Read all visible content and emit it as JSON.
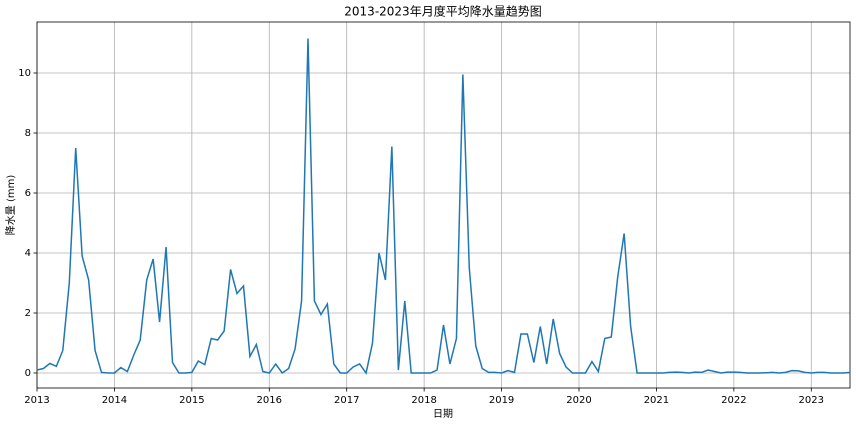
{
  "chart_data": {
    "type": "line",
    "title": "2013-2023年月度平均降水量趋势图",
    "x_label": "日期",
    "y_label": "降水量 (mm)",
    "x": [
      2013,
      2013.083,
      2013.167,
      2013.25,
      2013.333,
      2013.417,
      2013.5,
      2013.583,
      2013.667,
      2013.75,
      2013.833,
      2013.917,
      2014,
      2014.083,
      2014.167,
      2014.25,
      2014.333,
      2014.417,
      2014.5,
      2014.583,
      2014.667,
      2014.75,
      2014.833,
      2014.917,
      2015,
      2015.083,
      2015.167,
      2015.25,
      2015.333,
      2015.417,
      2015.5,
      2015.583,
      2015.667,
      2015.75,
      2015.833,
      2015.917,
      2016,
      2016.083,
      2016.167,
      2016.25,
      2016.333,
      2016.417,
      2016.5,
      2016.583,
      2016.667,
      2016.75,
      2016.833,
      2016.917,
      2017,
      2017.083,
      2017.167,
      2017.25,
      2017.333,
      2017.417,
      2017.5,
      2017.583,
      2017.667,
      2017.75,
      2017.833,
      2017.917,
      2018,
      2018.083,
      2018.167,
      2018.25,
      2018.333,
      2018.417,
      2018.5,
      2018.583,
      2018.667,
      2018.75,
      2018.833,
      2018.917,
      2019,
      2019.083,
      2019.167,
      2019.25,
      2019.333,
      2019.417,
      2019.5,
      2019.583,
      2019.667,
      2019.75,
      2019.833,
      2019.917,
      2020,
      2020.083,
      2020.167,
      2020.25,
      2020.333,
      2020.417,
      2020.5,
      2020.583,
      2020.667,
      2020.75,
      2020.833,
      2020.917,
      2021,
      2021.083,
      2021.167,
      2021.25,
      2021.333,
      2021.417,
      2021.5,
      2021.583,
      2021.667,
      2021.75,
      2021.833,
      2021.917,
      2022,
      2022.083,
      2022.167,
      2022.25,
      2022.333,
      2022.417,
      2022.5,
      2022.583,
      2022.667,
      2022.75,
      2022.833,
      2022.917,
      2023,
      2023.083,
      2023.167,
      2023.25,
      2023.333,
      2023.417,
      2023.5
    ],
    "series": [
      {
        "name": "降水量",
        "color": "#1f77b4",
        "values": [
          0.1,
          0.15,
          0.32,
          0.22,
          0.75,
          3.0,
          7.5,
          3.9,
          3.1,
          0.75,
          0.02,
          0.0,
          0.0,
          0.18,
          0.05,
          0.6,
          1.1,
          3.1,
          3.8,
          1.7,
          4.2,
          0.35,
          0.0,
          0.0,
          0.02,
          0.4,
          0.28,
          1.15,
          1.1,
          1.4,
          3.45,
          2.65,
          2.9,
          0.55,
          0.95,
          0.05,
          0.0,
          0.3,
          0.0,
          0.15,
          0.8,
          2.4,
          11.15,
          2.4,
          1.95,
          2.3,
          0.3,
          0.0,
          0.0,
          0.2,
          0.3,
          0.0,
          1.0,
          4.0,
          3.1,
          7.55,
          0.1,
          2.4,
          0.0,
          0.0,
          0.0,
          0.0,
          0.1,
          1.6,
          0.3,
          1.15,
          9.95,
          3.5,
          0.9,
          0.15,
          0.02,
          0.02,
          0.0,
          0.08,
          0.02,
          1.3,
          1.3,
          0.35,
          1.55,
          0.3,
          1.8,
          0.65,
          0.2,
          0.0,
          0.0,
          0.0,
          0.38,
          0.05,
          1.15,
          1.2,
          3.2,
          4.65,
          1.55,
          0.0,
          0.0,
          0.0,
          0.0,
          0.0,
          0.02,
          0.03,
          0.02,
          0.0,
          0.03,
          0.02,
          0.1,
          0.05,
          0.0,
          0.03,
          0.03,
          0.02,
          0.0,
          0.0,
          0.0,
          0.01,
          0.02,
          0.0,
          0.02,
          0.08,
          0.07,
          0.02,
          0.0,
          0.02,
          0.02,
          0.0,
          0.0,
          0.0,
          0.02
        ]
      }
    ],
    "xlim": [
      2013,
      2023.5
    ],
    "xticks": [
      2013,
      2014,
      2015,
      2016,
      2017,
      2018,
      2019,
      2020,
      2021,
      2022,
      2023
    ],
    "ylim": [
      -0.5,
      11.7
    ],
    "yticks": [
      0,
      2,
      4,
      6,
      8,
      10
    ],
    "grid": true
  }
}
